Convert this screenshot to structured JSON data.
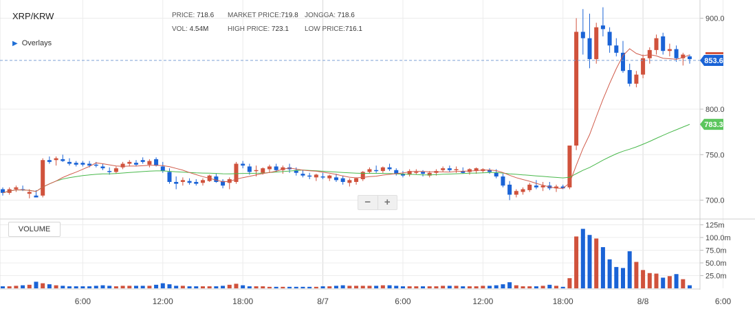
{
  "header": {
    "symbol": "XRP/KRW",
    "overlays_label": "Overlays",
    "price_label": "PRICE:",
    "price_value": "718.6",
    "market_label": "MARKET PRICE:",
    "market_value": "719.8",
    "jongga_label": "JONGGA:",
    "jongga_value": "718.6",
    "vol_label": "VOL:",
    "vol_value": "4.54M",
    "high_label": "HIGH PRICE:",
    "high_value": "723.1",
    "low_label": "LOW PRICE:",
    "low_value": "716.1"
  },
  "volume_button": "VOLUME",
  "zoom": {
    "minus": "−",
    "plus": "+"
  },
  "colors": {
    "up": "#d0523c",
    "down": "#1a63d6",
    "ma_short": "#d05b4a",
    "ma_long": "#47b84a",
    "grid": "#ececec"
  },
  "chart_data": {
    "type": "candlestick",
    "price_ticks": [
      700,
      750,
      800,
      900
    ],
    "price_tick_labels": [
      "700.0",
      "750.0",
      "800.0",
      "900.0"
    ],
    "price_range": [
      680,
      920
    ],
    "volume_ticks": [
      25,
      50,
      75,
      100,
      125
    ],
    "volume_tick_labels": [
      "25.0m",
      "50.0m",
      "75.0m",
      "100.0m",
      "125m"
    ],
    "volume_range": [
      0,
      135
    ],
    "x_ticks": [
      {
        "i": 12,
        "label": "6:00"
      },
      {
        "i": 24,
        "label": "12:00"
      },
      {
        "i": 36,
        "label": "18:00"
      },
      {
        "i": 48,
        "label": "8/7"
      },
      {
        "i": 60,
        "label": "6:00"
      },
      {
        "i": 72,
        "label": "12:00"
      },
      {
        "i": 84,
        "label": "18:00"
      },
      {
        "i": 96,
        "label": "8/8"
      },
      {
        "i": 108,
        "label": "6:00"
      }
    ],
    "current_price": {
      "value": 853.6,
      "label": "853.6"
    },
    "ma_long_last": {
      "value": 783.3,
      "label": "783.3"
    },
    "candles": [
      [
        712,
        714,
        705,
        708,
        4
      ],
      [
        708,
        714,
        706,
        712,
        4
      ],
      [
        712,
        716,
        709,
        714,
        5
      ],
      [
        712,
        716,
        710,
        711,
        6
      ],
      [
        707,
        712,
        702,
        709,
        7
      ],
      [
        705,
        711,
        703,
        703,
        13
      ],
      [
        705,
        746,
        703,
        744,
        10
      ],
      [
        744,
        748,
        740,
        742,
        8
      ],
      [
        744,
        748,
        738,
        746,
        6
      ],
      [
        745,
        750,
        742,
        743,
        5
      ],
      [
        742,
        746,
        738,
        740,
        4
      ],
      [
        741,
        743,
        737,
        739,
        4
      ],
      [
        741,
        743,
        737,
        739,
        4
      ],
      [
        740,
        743,
        736,
        738,
        4
      ],
      [
        739,
        742,
        736,
        738,
        5
      ],
      [
        737,
        740,
        733,
        735,
        6
      ],
      [
        732,
        736,
        728,
        731,
        5
      ],
      [
        731,
        737,
        729,
        735,
        4
      ],
      [
        736,
        742,
        734,
        740,
        5
      ],
      [
        740,
        744,
        737,
        742,
        5
      ],
      [
        741,
        744,
        737,
        739,
        5
      ],
      [
        744,
        747,
        740,
        742,
        5
      ],
      [
        739,
        745,
        736,
        743,
        5
      ],
      [
        745,
        747,
        737,
        738,
        7
      ],
      [
        737,
        742,
        730,
        732,
        10
      ],
      [
        731,
        735,
        718,
        720,
        8
      ],
      [
        720,
        726,
        712,
        718,
        5
      ],
      [
        720,
        725,
        716,
        722,
        5
      ],
      [
        721,
        724,
        717,
        719,
        4
      ],
      [
        720,
        723,
        716,
        718,
        4
      ],
      [
        719,
        724,
        716,
        722,
        4
      ],
      [
        721,
        728,
        720,
        727,
        4
      ],
      [
        726,
        729,
        719,
        720,
        4
      ],
      [
        721,
        723,
        713,
        716,
        5
      ],
      [
        719,
        725,
        712,
        723,
        7
      ],
      [
        720,
        742,
        718,
        740,
        9
      ],
      [
        740,
        743,
        735,
        738,
        6
      ],
      [
        737,
        740,
        728,
        731,
        4
      ],
      [
        732,
        738,
        726,
        733,
        4
      ],
      [
        730,
        736,
        728,
        735,
        4
      ],
      [
        734,
        739,
        730,
        737,
        3
      ],
      [
        737,
        740,
        731,
        733,
        3
      ],
      [
        733,
        738,
        729,
        736,
        3
      ],
      [
        736,
        740,
        730,
        734,
        3
      ],
      [
        733,
        736,
        727,
        730,
        3
      ],
      [
        729,
        733,
        725,
        727,
        3
      ],
      [
        727,
        730,
        723,
        726,
        3
      ],
      [
        725,
        729,
        721,
        728,
        3
      ],
      [
        726,
        730,
        723,
        725,
        4
      ],
      [
        724,
        728,
        721,
        727,
        4
      ],
      [
        725,
        729,
        720,
        722,
        5
      ],
      [
        724,
        727,
        717,
        720,
        6
      ],
      [
        719,
        724,
        715,
        722,
        5
      ],
      [
        720,
        725,
        717,
        724,
        5
      ],
      [
        723,
        732,
        721,
        731,
        5
      ],
      [
        731,
        736,
        729,
        734,
        5
      ],
      [
        733,
        738,
        730,
        732,
        5
      ],
      [
        732,
        737,
        730,
        736,
        6
      ],
      [
        736,
        740,
        732,
        734,
        6
      ],
      [
        733,
        735,
        727,
        729,
        5
      ],
      [
        729,
        732,
        725,
        727,
        4
      ],
      [
        728,
        734,
        726,
        732,
        4
      ],
      [
        730,
        734,
        728,
        731,
        4
      ],
      [
        731,
        733,
        726,
        729,
        4
      ],
      [
        727,
        732,
        725,
        730,
        4
      ],
      [
        730,
        734,
        727,
        732,
        4
      ],
      [
        733,
        737,
        731,
        735,
        5
      ],
      [
        735,
        738,
        731,
        733,
        5
      ],
      [
        733,
        737,
        730,
        734,
        5
      ],
      [
        732,
        736,
        729,
        730,
        4
      ],
      [
        731,
        735,
        728,
        734,
        4
      ],
      [
        732,
        736,
        729,
        735,
        4
      ],
      [
        732,
        735,
        730,
        734,
        5
      ],
      [
        733,
        735,
        729,
        731,
        5
      ],
      [
        730,
        734,
        724,
        726,
        6
      ],
      [
        726,
        729,
        714,
        716,
        8
      ],
      [
        717,
        721,
        700,
        706,
        12
      ],
      [
        706,
        712,
        703,
        710,
        6
      ],
      [
        709,
        714,
        706,
        712,
        4
      ],
      [
        711,
        719,
        709,
        717,
        4
      ],
      [
        716,
        722,
        712,
        714,
        4
      ],
      [
        714,
        720,
        710,
        716,
        5
      ],
      [
        716,
        720,
        711,
        713,
        7
      ],
      [
        713,
        717,
        709,
        715,
        5
      ],
      [
        715,
        717,
        712,
        713,
        3
      ],
      [
        714,
        760,
        712,
        760,
        20
      ],
      [
        760,
        900,
        755,
        885,
        102
      ],
      [
        885,
        910,
        860,
        878,
        117
      ],
      [
        878,
        905,
        845,
        855,
        105
      ],
      [
        855,
        895,
        850,
        890,
        98
      ],
      [
        892,
        912,
        880,
        888,
        81
      ],
      [
        885,
        890,
        862,
        870,
        57
      ],
      [
        870,
        878,
        858,
        862,
        42
      ],
      [
        862,
        875,
        840,
        842,
        40
      ],
      [
        843,
        850,
        825,
        828,
        73
      ],
      [
        828,
        842,
        824,
        838,
        52
      ],
      [
        838,
        860,
        834,
        856,
        36
      ],
      [
        856,
        868,
        850,
        865,
        30
      ],
      [
        865,
        882,
        860,
        878,
        29
      ],
      [
        880,
        884,
        860,
        864,
        21
      ],
      [
        864,
        872,
        858,
        866,
        24
      ],
      [
        866,
        870,
        852,
        856,
        28
      ],
      [
        856,
        862,
        848,
        860,
        18
      ],
      [
        858,
        860,
        850,
        855,
        6
      ]
    ]
  }
}
